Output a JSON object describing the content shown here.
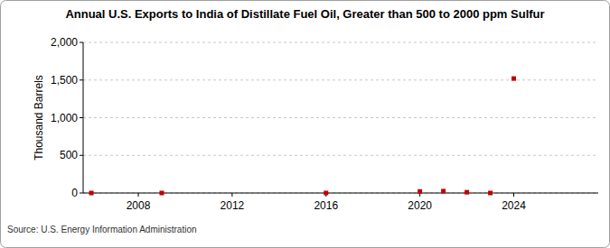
{
  "chart_data": {
    "type": "scatter",
    "title": "Annual U.S. Exports to India of Distillate Fuel Oil, Greater than 500 to 2000 ppm Sulfur",
    "y_label": "Thousand Barrels",
    "source": "Source: U.S. Energy Information Administration",
    "x": [
      2006,
      2009,
      2016,
      2020,
      2021,
      2022,
      2023,
      2024
    ],
    "values": [
      0,
      0,
      0,
      20,
      25,
      10,
      0,
      1520
    ],
    "color": "#c00000",
    "marker": "square",
    "xlim": [
      2005.65,
      2027.6
    ],
    "ylim": [
      0,
      2000
    ],
    "xticks": [
      2008,
      2012,
      2016,
      2020,
      2024
    ],
    "yticks": [
      0,
      500,
      {
        "value": 1000,
        "label": "1,000"
      },
      {
        "value": 1500,
        "label": "1,500"
      },
      {
        "value": 2000,
        "label": "2,000"
      }
    ],
    "grid": true
  }
}
